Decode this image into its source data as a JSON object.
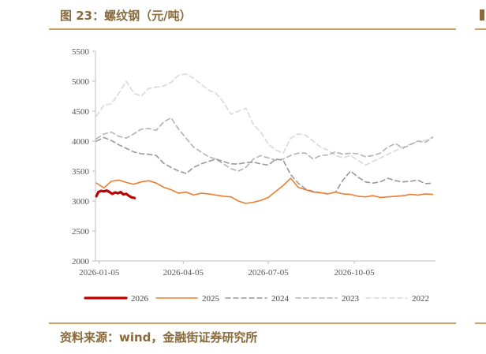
{
  "header": {
    "title": "图 23：螺纹钢（元/吨）"
  },
  "footer": {
    "source": "资料来源：wind，金融街证券研究所"
  },
  "chart_data": {
    "type": "line",
    "title": "",
    "xlabel": "",
    "ylabel": "",
    "ylim": [
      2000,
      5500
    ],
    "yticks": [
      2000,
      2500,
      3000,
      3500,
      4000,
      4500,
      5000,
      5500
    ],
    "xticks": [
      "2026-01-05",
      "2026-04-05",
      "2026-07-05",
      "2026-10-05"
    ],
    "x_axis_range": [
      "2026-01-01",
      "2026-12-31"
    ],
    "legend_position": "bottom",
    "grid": false,
    "series": [
      {
        "name": "2026",
        "color": "#c00000",
        "style": "solid-thick",
        "points": [
          [
            "2026-01-02",
            3080
          ],
          [
            "2026-01-04",
            3150
          ],
          [
            "2026-01-07",
            3170
          ],
          [
            "2026-01-10",
            3160
          ],
          [
            "2026-01-13",
            3175
          ],
          [
            "2026-01-16",
            3150
          ],
          [
            "2026-01-19",
            3120
          ],
          [
            "2026-01-22",
            3145
          ],
          [
            "2026-01-25",
            3130
          ],
          [
            "2026-01-28",
            3150
          ],
          [
            "2026-01-31",
            3110
          ],
          [
            "2026-02-03",
            3120
          ],
          [
            "2026-02-06",
            3085
          ],
          [
            "2026-02-09",
            3060
          ],
          [
            "2026-02-12",
            3050
          ]
        ]
      },
      {
        "name": "2025",
        "color": "#ed7d31",
        "style": "solid",
        "points": [
          [
            "2026-01-02",
            3300
          ],
          [
            "2026-01-10",
            3220
          ],
          [
            "2026-01-18",
            3330
          ],
          [
            "2026-01-26",
            3350
          ],
          [
            "2026-02-03",
            3310
          ],
          [
            "2026-02-11",
            3280
          ],
          [
            "2026-02-19",
            3320
          ],
          [
            "2026-02-27",
            3340
          ],
          [
            "2026-03-07",
            3300
          ],
          [
            "2026-03-15",
            3230
          ],
          [
            "2026-03-23",
            3190
          ],
          [
            "2026-03-31",
            3130
          ],
          [
            "2026-04-08",
            3150
          ],
          [
            "2026-04-16",
            3100
          ],
          [
            "2026-04-24",
            3130
          ],
          [
            "2026-05-02",
            3120
          ],
          [
            "2026-05-10",
            3100
          ],
          [
            "2026-05-18",
            3080
          ],
          [
            "2026-05-26",
            3070
          ],
          [
            "2026-06-03",
            3000
          ],
          [
            "2026-06-11",
            2960
          ],
          [
            "2026-06-19",
            2980
          ],
          [
            "2026-06-27",
            3010
          ],
          [
            "2026-07-05",
            3060
          ],
          [
            "2026-07-13",
            3160
          ],
          [
            "2026-07-21",
            3260
          ],
          [
            "2026-07-29",
            3380
          ],
          [
            "2026-08-06",
            3230
          ],
          [
            "2026-08-14",
            3190
          ],
          [
            "2026-08-22",
            3150
          ],
          [
            "2026-08-30",
            3140
          ],
          [
            "2026-09-07",
            3120
          ],
          [
            "2026-09-15",
            3150
          ],
          [
            "2026-09-23",
            3120
          ],
          [
            "2026-10-01",
            3110
          ],
          [
            "2026-10-09",
            3080
          ],
          [
            "2026-10-17",
            3070
          ],
          [
            "2026-10-25",
            3090
          ],
          [
            "2026-11-02",
            3060
          ],
          [
            "2026-11-10",
            3070
          ],
          [
            "2026-11-18",
            3080
          ],
          [
            "2026-11-26",
            3090
          ],
          [
            "2026-12-04",
            3110
          ],
          [
            "2026-12-12",
            3100
          ],
          [
            "2026-12-20",
            3120
          ],
          [
            "2026-12-28",
            3110
          ]
        ]
      },
      {
        "name": "2024",
        "color": "#999999",
        "style": "dashed",
        "points": [
          [
            "2026-01-02",
            4000
          ],
          [
            "2026-01-10",
            4060
          ],
          [
            "2026-01-18",
            4010
          ],
          [
            "2026-01-26",
            3940
          ],
          [
            "2026-02-03",
            3880
          ],
          [
            "2026-02-11",
            3820
          ],
          [
            "2026-02-19",
            3790
          ],
          [
            "2026-02-27",
            3780
          ],
          [
            "2026-03-07",
            3760
          ],
          [
            "2026-03-15",
            3630
          ],
          [
            "2026-03-23",
            3560
          ],
          [
            "2026-03-31",
            3500
          ],
          [
            "2026-04-08",
            3460
          ],
          [
            "2026-04-16",
            3560
          ],
          [
            "2026-04-24",
            3620
          ],
          [
            "2026-05-02",
            3660
          ],
          [
            "2026-05-10",
            3700
          ],
          [
            "2026-05-18",
            3660
          ],
          [
            "2026-05-26",
            3620
          ],
          [
            "2026-06-03",
            3620
          ],
          [
            "2026-06-11",
            3640
          ],
          [
            "2026-06-19",
            3650
          ],
          [
            "2026-06-27",
            3620
          ],
          [
            "2026-07-05",
            3600
          ],
          [
            "2026-07-13",
            3700
          ],
          [
            "2026-07-21",
            3680
          ],
          [
            "2026-07-29",
            3440
          ],
          [
            "2026-08-06",
            3300
          ],
          [
            "2026-08-14",
            3200
          ],
          [
            "2026-08-22",
            3160
          ],
          [
            "2026-08-30",
            3140
          ],
          [
            "2026-09-07",
            3120
          ],
          [
            "2026-09-15",
            3150
          ],
          [
            "2026-09-23",
            3350
          ],
          [
            "2026-10-01",
            3500
          ],
          [
            "2026-10-09",
            3400
          ],
          [
            "2026-10-17",
            3320
          ],
          [
            "2026-10-25",
            3300
          ],
          [
            "2026-11-02",
            3320
          ],
          [
            "2026-11-10",
            3380
          ],
          [
            "2026-11-18",
            3340
          ],
          [
            "2026-11-26",
            3320
          ],
          [
            "2026-12-04",
            3330
          ],
          [
            "2026-12-12",
            3350
          ],
          [
            "2026-12-20",
            3290
          ],
          [
            "2026-12-28",
            3300
          ]
        ]
      },
      {
        "name": "2023",
        "color": "#b3b3b3",
        "style": "dashed",
        "points": [
          [
            "2026-01-02",
            4040
          ],
          [
            "2026-01-10",
            4120
          ],
          [
            "2026-01-18",
            4150
          ],
          [
            "2026-01-26",
            4080
          ],
          [
            "2026-02-03",
            4050
          ],
          [
            "2026-02-11",
            4120
          ],
          [
            "2026-02-19",
            4200
          ],
          [
            "2026-02-27",
            4210
          ],
          [
            "2026-03-07",
            4180
          ],
          [
            "2026-03-15",
            4320
          ],
          [
            "2026-03-23",
            4390
          ],
          [
            "2026-03-31",
            4200
          ],
          [
            "2026-04-08",
            4050
          ],
          [
            "2026-04-16",
            3900
          ],
          [
            "2026-04-24",
            3820
          ],
          [
            "2026-05-02",
            3740
          ],
          [
            "2026-05-10",
            3700
          ],
          [
            "2026-05-18",
            3620
          ],
          [
            "2026-05-26",
            3540
          ],
          [
            "2026-06-03",
            3500
          ],
          [
            "2026-06-11",
            3560
          ],
          [
            "2026-06-19",
            3700
          ],
          [
            "2026-06-27",
            3760
          ],
          [
            "2026-07-05",
            3720
          ],
          [
            "2026-07-13",
            3680
          ],
          [
            "2026-07-21",
            3700
          ],
          [
            "2026-07-29",
            3760
          ],
          [
            "2026-08-06",
            3800
          ],
          [
            "2026-08-14",
            3800
          ],
          [
            "2026-08-22",
            3700
          ],
          [
            "2026-08-30",
            3760
          ],
          [
            "2026-09-07",
            3770
          ],
          [
            "2026-09-15",
            3820
          ],
          [
            "2026-09-23",
            3780
          ],
          [
            "2026-10-01",
            3800
          ],
          [
            "2026-10-09",
            3790
          ],
          [
            "2026-10-17",
            3740
          ],
          [
            "2026-10-25",
            3760
          ],
          [
            "2026-11-02",
            3800
          ],
          [
            "2026-11-10",
            3900
          ],
          [
            "2026-11-18",
            3960
          ],
          [
            "2026-11-26",
            3880
          ],
          [
            "2026-12-04",
            3940
          ],
          [
            "2026-12-12",
            4000
          ],
          [
            "2026-12-20",
            3980
          ],
          [
            "2026-12-28",
            4060
          ]
        ]
      },
      {
        "name": "2022",
        "color": "#d9d9d9",
        "style": "dashed",
        "points": [
          [
            "2026-01-02",
            4420
          ],
          [
            "2026-01-10",
            4600
          ],
          [
            "2026-01-18",
            4620
          ],
          [
            "2026-01-26",
            4800
          ],
          [
            "2026-02-03",
            5000
          ],
          [
            "2026-02-11",
            4800
          ],
          [
            "2026-02-19",
            4750
          ],
          [
            "2026-02-27",
            4880
          ],
          [
            "2026-03-07",
            4900
          ],
          [
            "2026-03-15",
            4920
          ],
          [
            "2026-03-23",
            4980
          ],
          [
            "2026-03-31",
            5100
          ],
          [
            "2026-04-08",
            5120
          ],
          [
            "2026-04-16",
            5050
          ],
          [
            "2026-04-24",
            4950
          ],
          [
            "2026-05-02",
            4850
          ],
          [
            "2026-05-10",
            4800
          ],
          [
            "2026-05-18",
            4650
          ],
          [
            "2026-05-26",
            4450
          ],
          [
            "2026-06-03",
            4500
          ],
          [
            "2026-06-11",
            4550
          ],
          [
            "2026-06-19",
            4280
          ],
          [
            "2026-06-27",
            4150
          ],
          [
            "2026-07-05",
            3950
          ],
          [
            "2026-07-13",
            3850
          ],
          [
            "2026-07-21",
            3800
          ],
          [
            "2026-07-29",
            4050
          ],
          [
            "2026-08-06",
            4120
          ],
          [
            "2026-08-14",
            4100
          ],
          [
            "2026-08-22",
            4000
          ],
          [
            "2026-08-30",
            3900
          ],
          [
            "2026-09-07",
            3850
          ],
          [
            "2026-09-15",
            3760
          ],
          [
            "2026-09-23",
            3720
          ],
          [
            "2026-10-01",
            3760
          ],
          [
            "2026-10-09",
            3680
          ],
          [
            "2026-10-17",
            3600
          ],
          [
            "2026-10-25",
            3660
          ],
          [
            "2026-11-02",
            3720
          ],
          [
            "2026-11-10",
            3780
          ],
          [
            "2026-11-18",
            3840
          ],
          [
            "2026-11-26",
            3900
          ],
          [
            "2026-12-04",
            3950
          ],
          [
            "2026-12-12",
            4000
          ],
          [
            "2026-12-20",
            4010
          ],
          [
            "2026-12-28",
            4070
          ]
        ]
      }
    ]
  }
}
